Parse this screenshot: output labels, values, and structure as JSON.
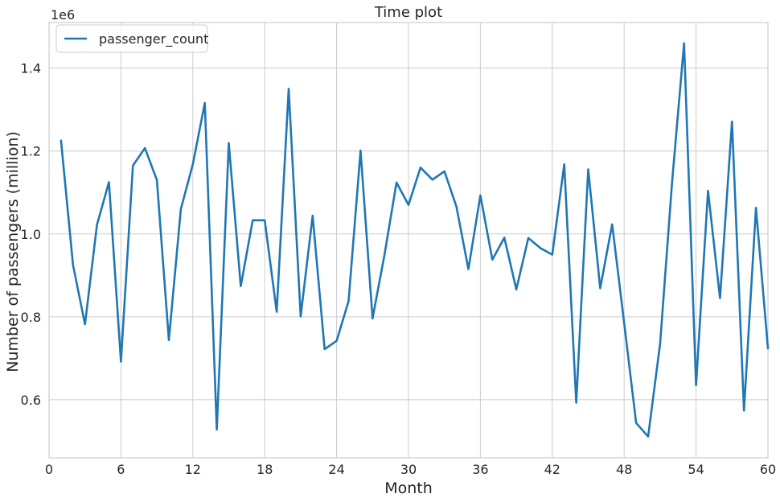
{
  "chart_data": {
    "type": "line",
    "title": "Time plot",
    "xlabel": "Month",
    "ylabel": "Number of passengers (million)",
    "y_offset_label": "1e6",
    "xlim": [
      0,
      60
    ],
    "ylim": [
      460000,
      1510000
    ],
    "x_ticks": [
      0,
      6,
      12,
      18,
      24,
      30,
      36,
      42,
      48,
      54,
      60
    ],
    "y_ticks": [
      600000,
      800000,
      1000000,
      1200000,
      1400000
    ],
    "y_tick_labels": [
      "0.6",
      "0.8",
      "1.0",
      "1.2",
      "1.4"
    ],
    "grid": true,
    "legend_position": "top-left",
    "series": [
      {
        "name": "passenger_count",
        "color": "#1f77b4",
        "x": [
          1,
          2,
          3,
          4,
          5,
          6,
          7,
          8,
          9,
          10,
          11,
          12,
          13,
          14,
          15,
          16,
          17,
          18,
          19,
          20,
          21,
          22,
          23,
          24,
          25,
          26,
          27,
          28,
          29,
          30,
          31,
          32,
          33,
          34,
          35,
          36,
          37,
          38,
          39,
          40,
          41,
          42,
          43,
          44,
          45,
          46,
          47,
          48,
          49,
          50,
          51,
          52,
          53,
          54,
          55,
          56,
          57,
          58,
          59,
          60
        ],
        "values": [
          1225000,
          925000,
          782000,
          1022000,
          1125000,
          692000,
          1165000,
          1207000,
          1130000,
          744000,
          1060000,
          1168000,
          1316000,
          528000,
          1219000,
          874000,
          1033000,
          1033000,
          812000,
          1350000,
          801000,
          1044000,
          722000,
          742000,
          838000,
          1201000,
          796000,
          950000,
          1124000,
          1070000,
          1160000,
          1131000,
          1151000,
          1066000,
          915000,
          1093000,
          938000,
          991000,
          866000,
          990000,
          966000,
          950000,
          1168000,
          593000,
          1156000,
          869000,
          1023000,
          785000,
          544000,
          511000,
          735000,
          1125000,
          1460000,
          635000,
          1104000,
          845000,
          1271000,
          574000,
          1063000,
          724000
        ]
      }
    ]
  }
}
